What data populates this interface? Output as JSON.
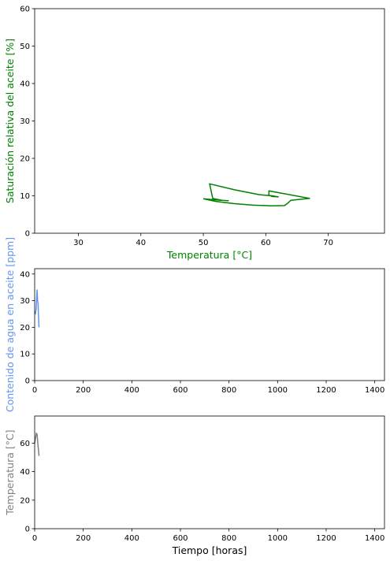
{
  "chart_data": [
    {
      "type": "line",
      "xlabel": "Temperatura [°C]",
      "ylabel": "Saturación relativa del aceite [%]",
      "label_color": "#008000",
      "xlim": [
        23,
        79
      ],
      "ylim": [
        0,
        60
      ],
      "xticks": [
        30,
        40,
        50,
        60,
        70
      ],
      "yticks": [
        0,
        10,
        20,
        30,
        40,
        50,
        60
      ],
      "grid": false,
      "series": [
        {
          "color": "#008000",
          "x": [
            50.0,
            52.0,
            54.0,
            53.0,
            51.5,
            51.0,
            55.0,
            59.0,
            61.0,
            62.0,
            61.0,
            60.5,
            60.5,
            67.0,
            64.0,
            63.5,
            63.0,
            61.0,
            58.0,
            55.0,
            52.0,
            50.0
          ],
          "y": [
            9.2,
            8.9,
            8.7,
            8.8,
            9.3,
            13.2,
            11.6,
            10.3,
            10.0,
            9.7,
            9.8,
            10.2,
            11.3,
            9.3,
            8.8,
            8.0,
            7.4,
            7.3,
            7.5,
            7.9,
            8.5,
            9.2
          ]
        }
      ]
    },
    {
      "type": "line",
      "xlabel": "",
      "ylabel": "Contenido de agua en aceite [ppm]",
      "label_color": "#6495ed",
      "xlim": [
        0,
        1440
      ],
      "ylim": [
        0,
        42
      ],
      "xticks": [
        0,
        200,
        400,
        600,
        800,
        1000,
        1200,
        1400
      ],
      "yticks": [
        0,
        10,
        20,
        30,
        40
      ],
      "grid": false,
      "series": [
        {
          "color": "#6495ed",
          "x": [
            0,
            3,
            6,
            8,
            10,
            12,
            14,
            16,
            18
          ],
          "y": [
            26,
            25,
            27,
            31,
            34,
            30,
            29,
            24,
            20
          ]
        }
      ]
    },
    {
      "type": "line",
      "xlabel": "Tiempo [horas]",
      "ylabel": "Temperatura [°C]",
      "label_color": "#808080",
      "xlim": [
        0,
        1440
      ],
      "ylim": [
        0,
        79
      ],
      "xticks": [
        0,
        200,
        400,
        600,
        800,
        1000,
        1200,
        1400
      ],
      "yticks": [
        0,
        20,
        40,
        60
      ],
      "grid": false,
      "series": [
        {
          "color": "#808080",
          "x": [
            0,
            4,
            7,
            10,
            12,
            14,
            16,
            18
          ],
          "y": [
            60,
            64,
            67,
            66,
            62,
            58,
            55,
            51
          ]
        }
      ]
    }
  ]
}
